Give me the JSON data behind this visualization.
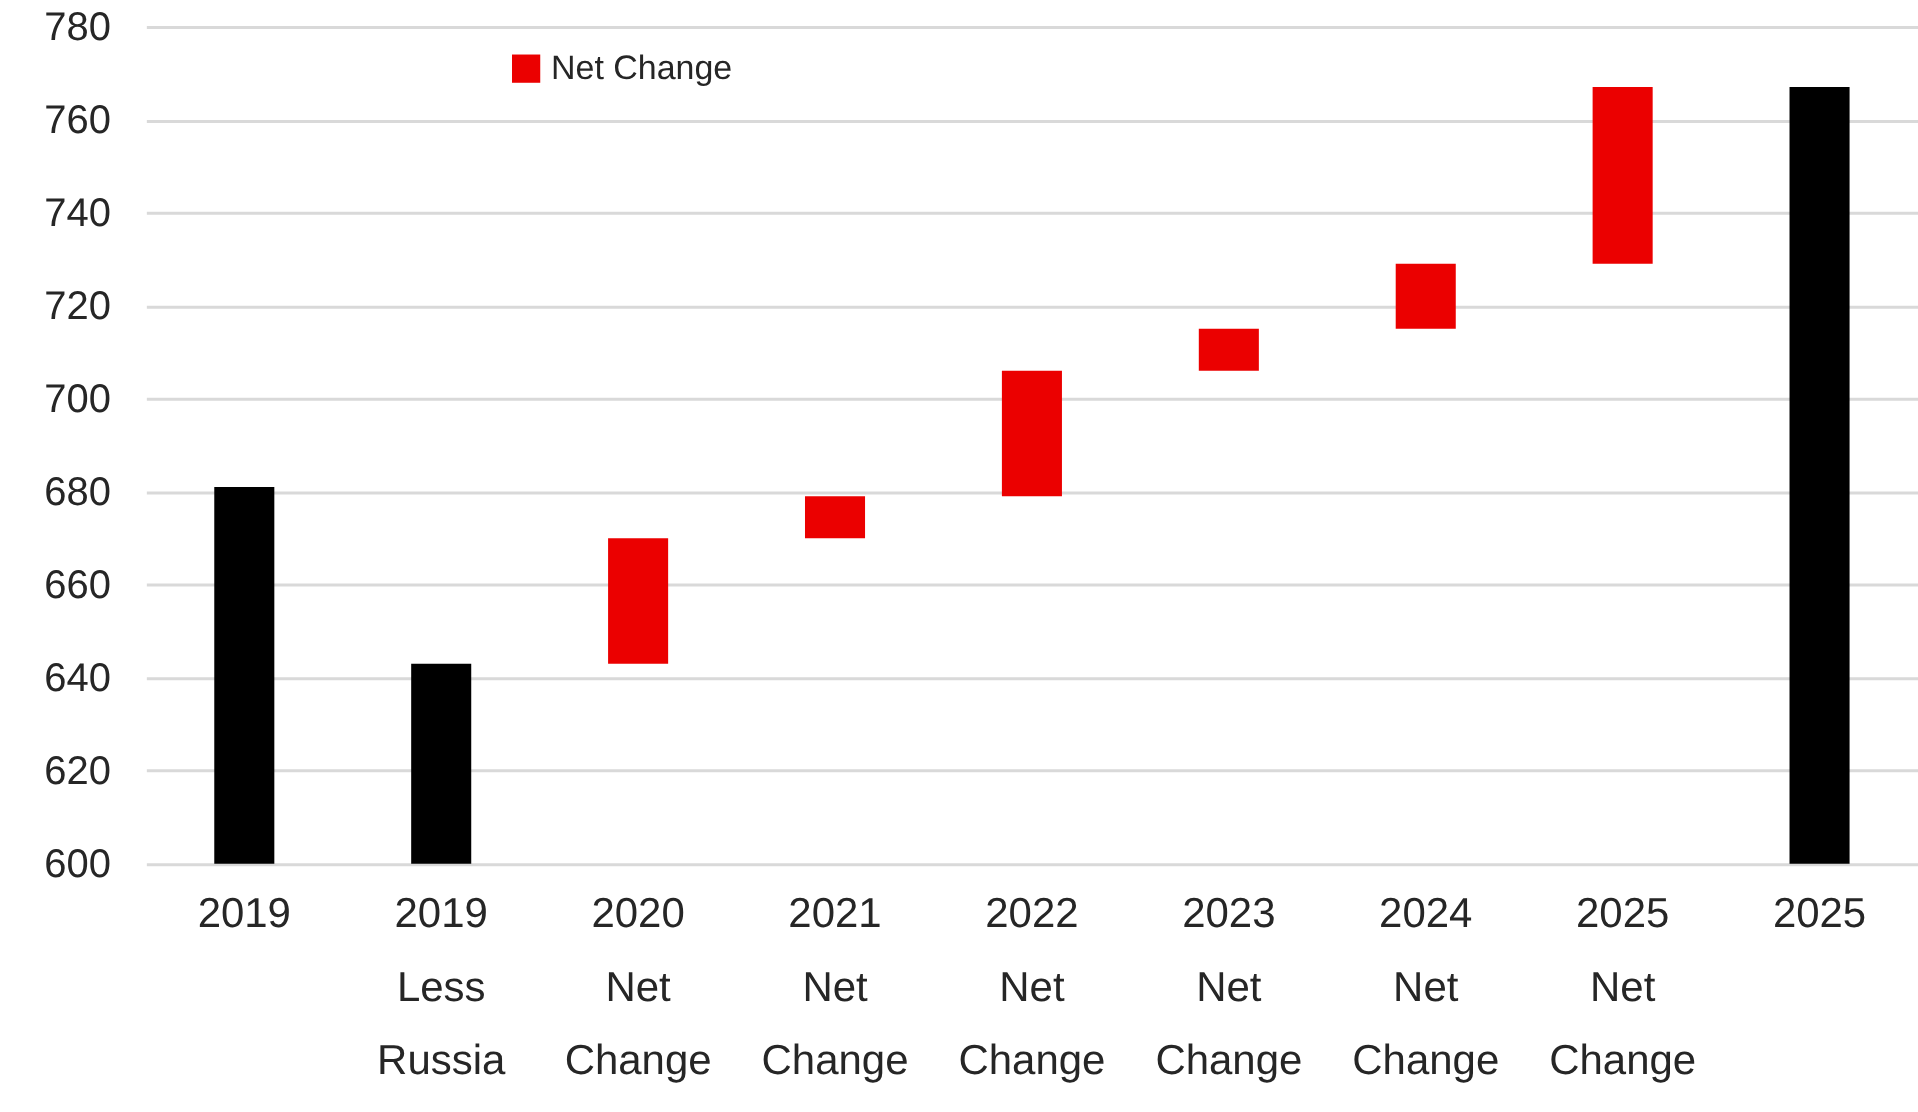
{
  "chart_data": {
    "type": "bar",
    "categories": [
      "2019",
      "2019 Less Russia",
      "2020 Net Change",
      "2021 Net Change",
      "2022 Net Change",
      "2023 Net Change",
      "2024 Net Change",
      "2025 Net Change",
      "2025"
    ],
    "series": [
      {
        "color": "#000000",
        "values": [
          681,
          643,
          null,
          null,
          null,
          null,
          null,
          null,
          767
        ]
      },
      {
        "name": "Net Change",
        "color": "#eb0000",
        "values": [
          null,
          null,
          27,
          9,
          27,
          9,
          14,
          38,
          null
        ],
        "base": [
          null,
          null,
          643,
          670,
          679,
          706,
          715,
          729,
          null
        ]
      }
    ],
    "ylim": [
      600,
      780
    ],
    "yticks": [
      600,
      620,
      640,
      660,
      680,
      700,
      720,
      740,
      760,
      780
    ],
    "grid": "y",
    "legend": "top left"
  }
}
